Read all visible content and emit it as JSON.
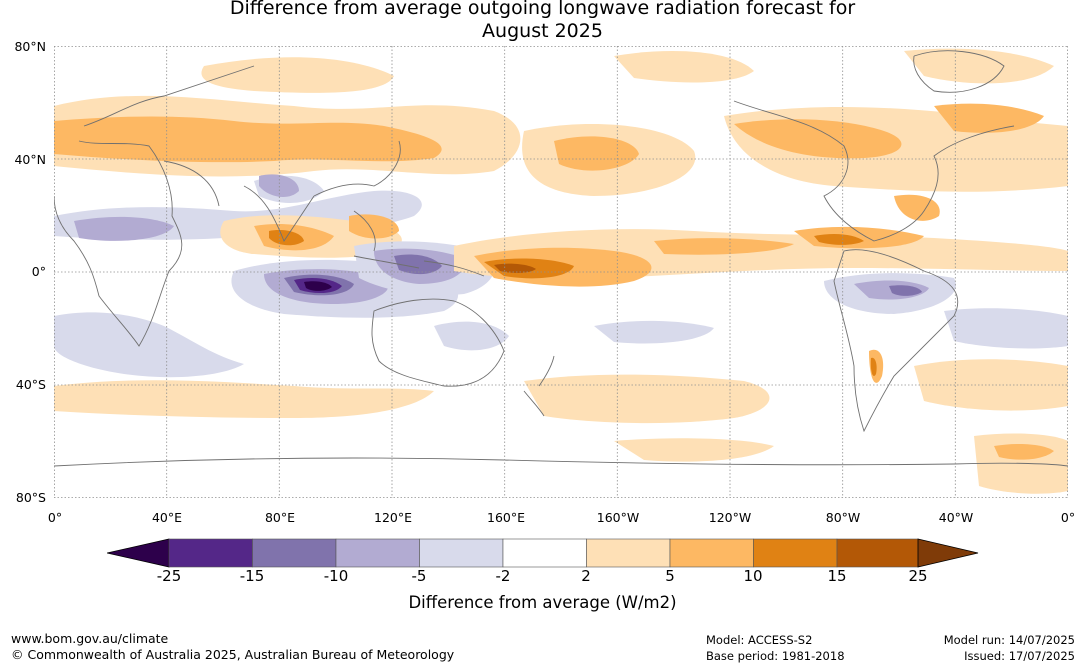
{
  "title": {
    "line1": "Difference from average outgoing longwave radiation forecast for",
    "line2": "August 2025"
  },
  "axes": {
    "lat_labels": [
      "80°N",
      "40°N",
      "0°",
      "40°S",
      "80°S"
    ],
    "lon_labels": [
      "0°",
      "40°E",
      "80°E",
      "120°E",
      "160°E",
      "160°W",
      "120°W",
      "80°W",
      "40°W",
      "0°"
    ]
  },
  "colorbar": {
    "ticks": [
      "-25",
      "-15",
      "-10",
      "-5",
      "-2",
      "2",
      "5",
      "10",
      "15",
      "25"
    ],
    "colors": [
      "#2d004b",
      "#542788",
      "#8073ac",
      "#b2abd2",
      "#d8daeb",
      "#ffffff",
      "#fee0b6",
      "#fdb863",
      "#e08214",
      "#b35806",
      "#7f3b08"
    ],
    "label": "Difference from average (W/m2)"
  },
  "footer": {
    "website": "www.bom.gov.au/climate",
    "copyright": "© Commonwealth of Australia 2025, Australian Bureau of Meteorology",
    "model": "Model: ACCESS-S2",
    "base_period": "Base period: 1981-2018",
    "model_run": "Model run: 14/07/2025",
    "issued": "Issued: 17/07/2025"
  }
}
